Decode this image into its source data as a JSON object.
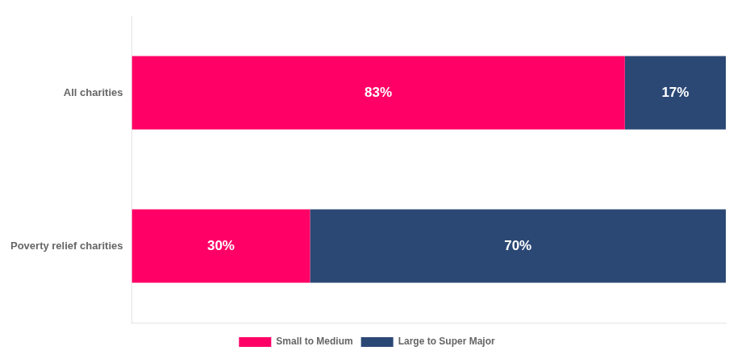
{
  "chart_data": {
    "type": "bar",
    "orientation": "horizontal",
    "stacked": true,
    "categories": [
      "All charities",
      "Poverty relief charities"
    ],
    "series": [
      {
        "name": "Small to Medium",
        "color": "#FF0066",
        "values": [
          83,
          30
        ],
        "value_labels": [
          "83%",
          "30%"
        ]
      },
      {
        "name": "Large to Super Major",
        "color": "#2B4875",
        "values": [
          17,
          70
        ],
        "value_labels": [
          "17%",
          "70%"
        ]
      }
    ],
    "xlim": [
      0,
      100
    ],
    "data_labels": true,
    "tick_labels": "y",
    "legend": "bottom",
    "grid": false
  }
}
